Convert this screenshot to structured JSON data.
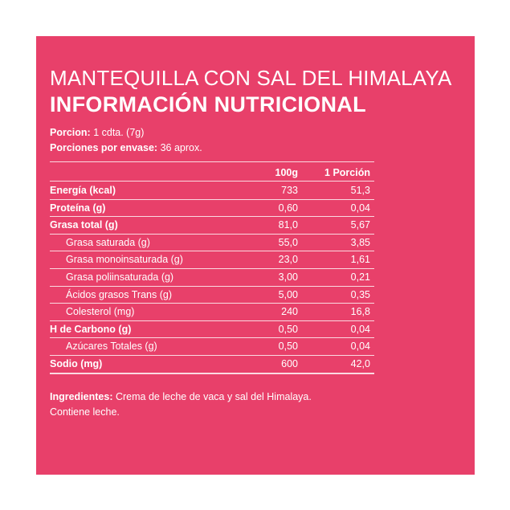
{
  "title_line1": "MANTEQUILLA CON SAL DEL HIMALAYA",
  "title_line2": "INFORMACIÓN NUTRICIONAL",
  "serving": {
    "portion_label": "Porcion:",
    "portion_value": "1 cdta. (7g)",
    "per_container_label": "Porciones por envase:",
    "per_container_value": "36 aprox."
  },
  "columns": [
    "100g",
    "1 Porción"
  ],
  "rows": [
    {
      "label": "Energía (kcal)",
      "v1": "733",
      "v2": "51,3",
      "style": "bold"
    },
    {
      "label": "Proteína (g)",
      "v1": "0,60",
      "v2": "0,04",
      "style": "bold"
    },
    {
      "label": "Grasa total (g)",
      "v1": "81,0",
      "v2": "5,67",
      "style": "bold"
    },
    {
      "label": "Grasa saturada (g)",
      "v1": "55,0",
      "v2": "3,85",
      "style": "sub"
    },
    {
      "label": "Grasa monoinsaturada (g)",
      "v1": "23,0",
      "v2": "1,61",
      "style": "sub"
    },
    {
      "label": "Grasa poliinsaturada (g)",
      "v1": "3,00",
      "v2": "0,21",
      "style": "sub"
    },
    {
      "label": "Ácidos grasos Trans (g)",
      "v1": "5,00",
      "v2": "0,35",
      "style": "sub"
    },
    {
      "label": "Colesterol (mg)",
      "v1": "240",
      "v2": "16,8",
      "style": "sub"
    },
    {
      "label": "H de Carbono (g)",
      "v1": "0,50",
      "v2": "0,04",
      "style": "bold"
    },
    {
      "label": "Azúcares Totales (g)",
      "v1": "0,50",
      "v2": "0,04",
      "style": "sub"
    },
    {
      "label": "Sodio (mg)",
      "v1": "600",
      "v2": "42,0",
      "style": "bold"
    }
  ],
  "ingredients": {
    "label": "Ingredientes:",
    "text": "Crema de leche de vaca y sal del Himalaya.",
    "allergen": "Contiene leche."
  },
  "colors": {
    "panel": "#e8406a",
    "text": "#ffffff"
  }
}
